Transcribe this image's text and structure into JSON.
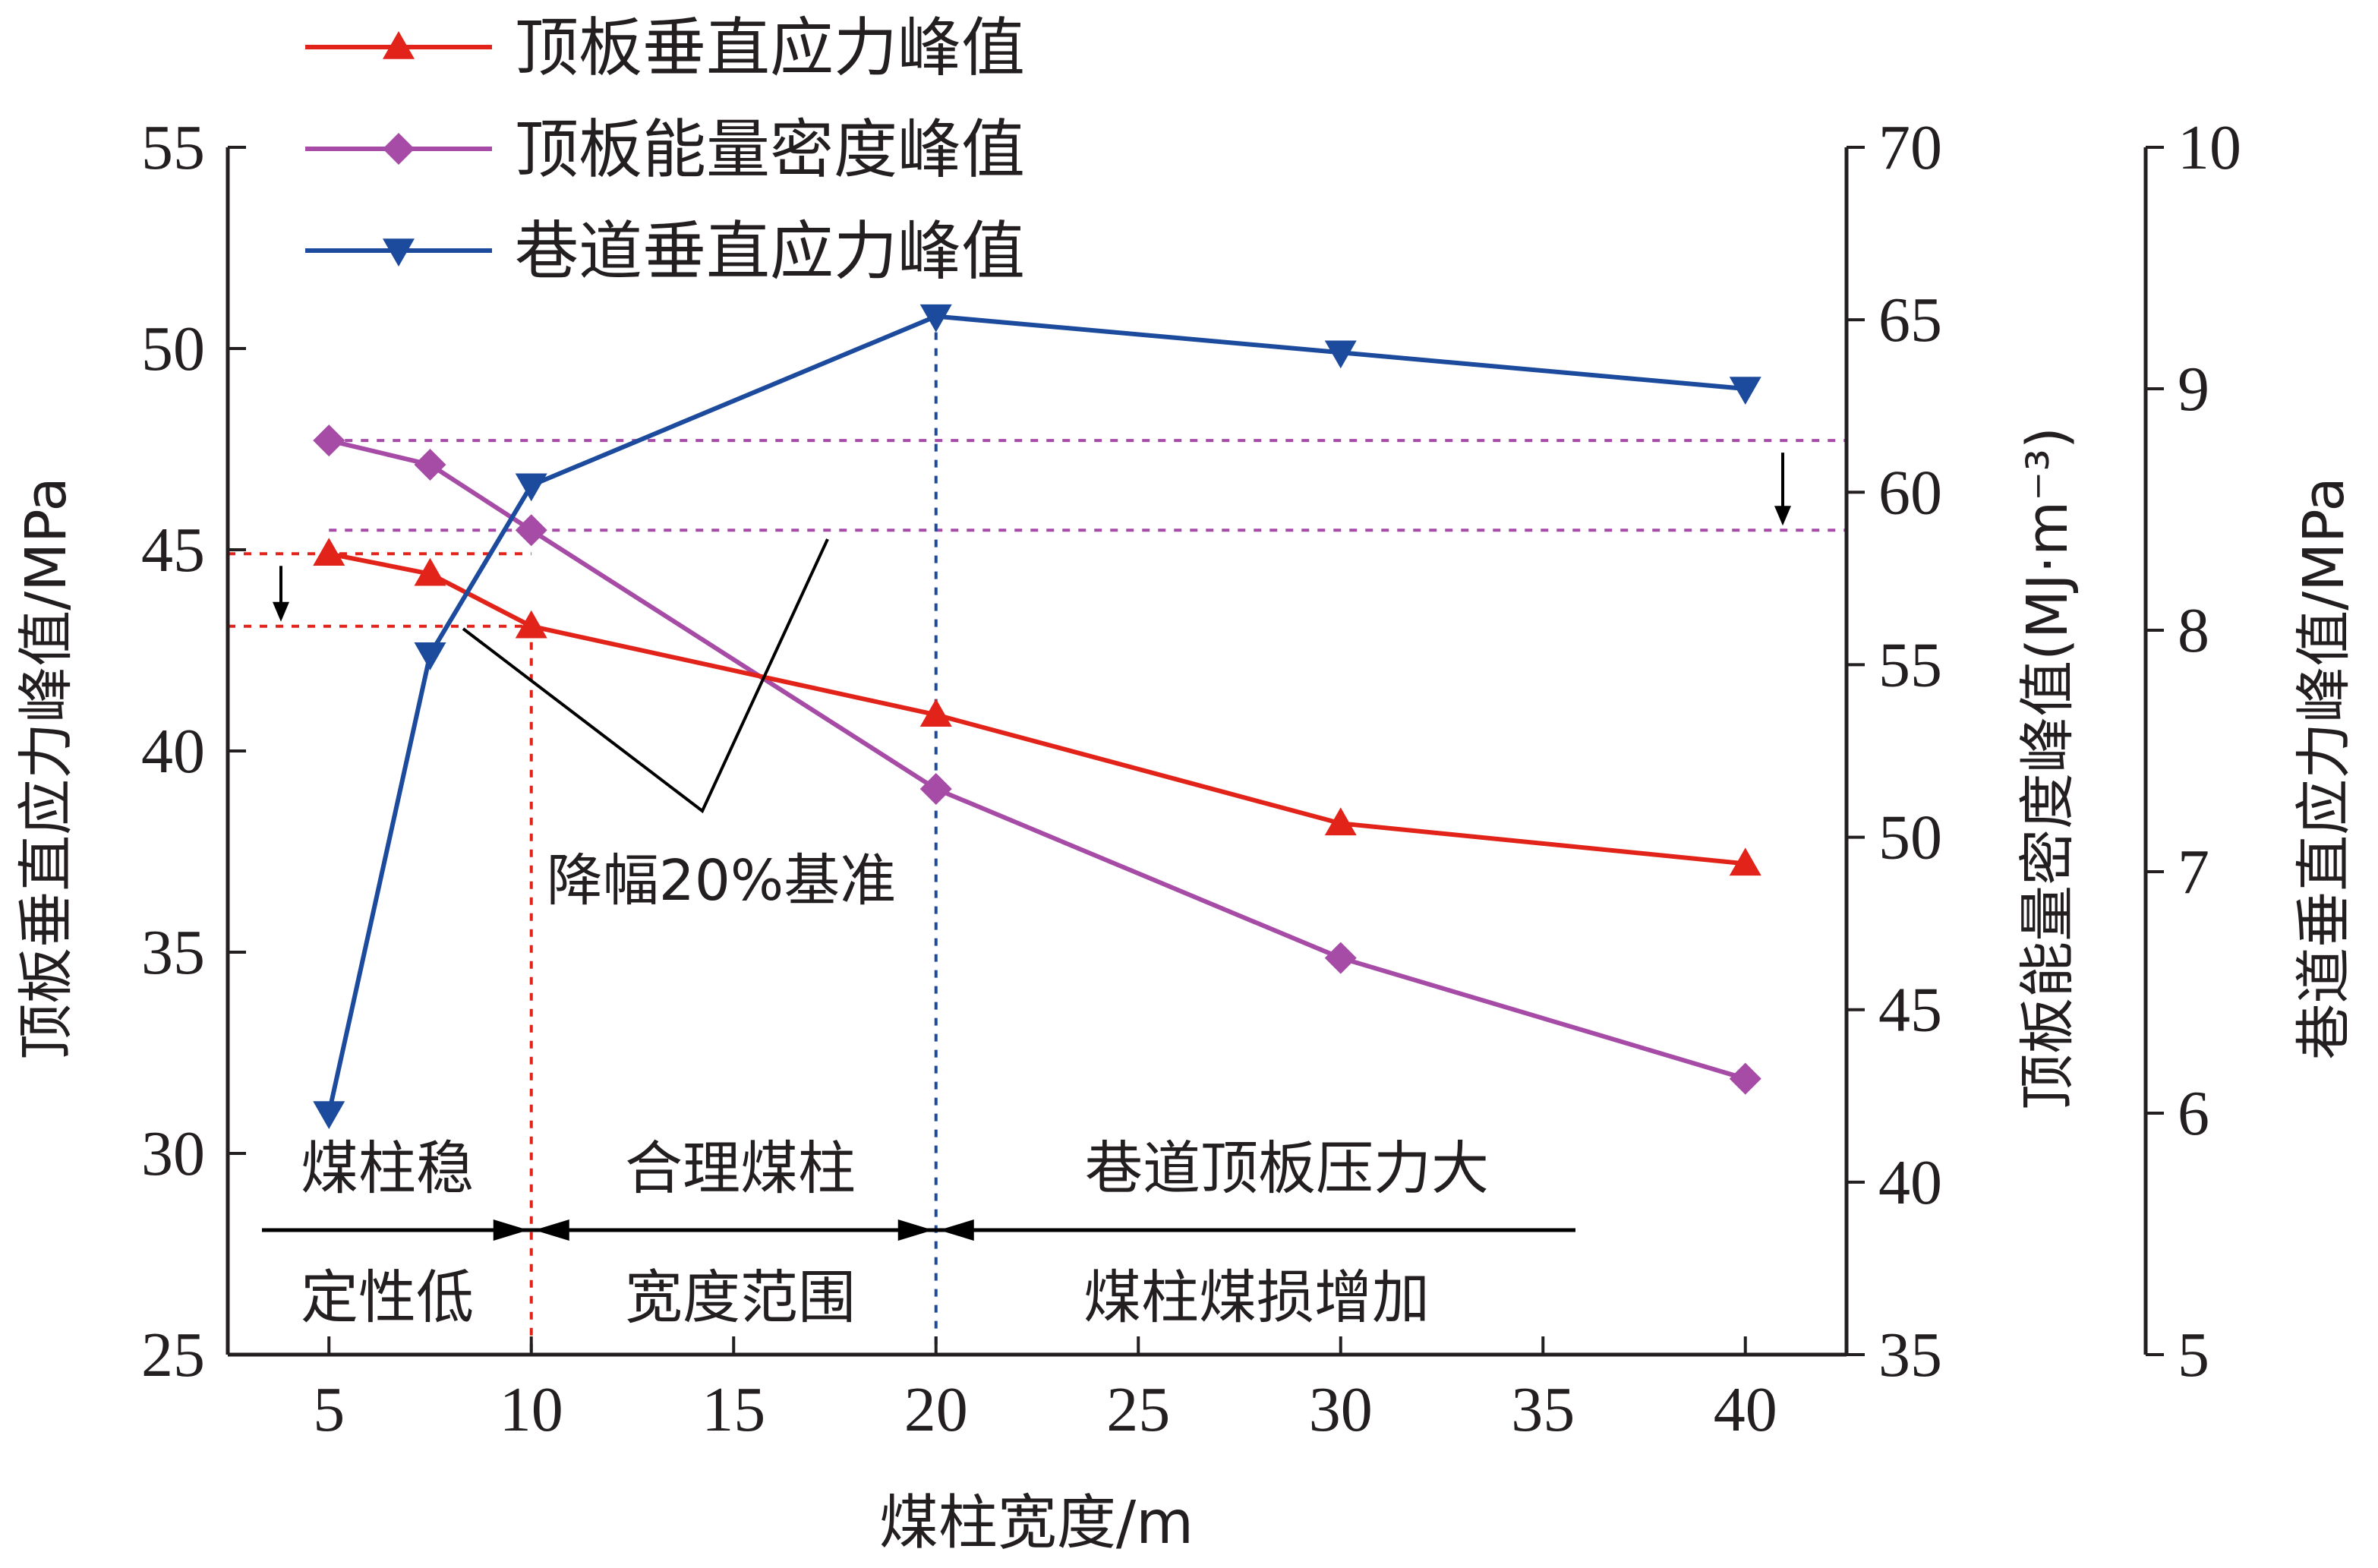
{
  "colors": {
    "roof_stress": "#e2231a",
    "energy_density": "#a64ca6",
    "roadway_stress": "#1c4a9c",
    "axis": "#231f20"
  },
  "chart_data": {
    "type": "line",
    "x": [
      5,
      7.5,
      10,
      20,
      30,
      40
    ],
    "xlabel": "煤柱宽度/m",
    "xticks": [
      "5",
      "10",
      "15",
      "20",
      "25",
      "30",
      "35",
      "40"
    ],
    "xlim": [
      2.5,
      42.5
    ],
    "y_axes": [
      {
        "id": "left",
        "label": "顶板垂直应力峰值/MPa",
        "ylim": [
          25,
          55
        ],
        "ticks": [
          "25",
          "30",
          "35",
          "40",
          "45",
          "50",
          "55"
        ]
      },
      {
        "id": "right1",
        "label": "顶板能量密度峰值(MJ·m⁻³)",
        "ylim": [
          35,
          70
        ],
        "ticks": [
          "35",
          "40",
          "45",
          "50",
          "55",
          "60",
          "65",
          "70"
        ]
      },
      {
        "id": "right2",
        "label": "巷道垂直应力峰值/MPa",
        "ylim": [
          5,
          10
        ],
        "ticks": [
          "5",
          "6",
          "7",
          "8",
          "9",
          "10"
        ]
      }
    ],
    "series": [
      {
        "name": "顶板垂直应力峰值",
        "axis": "left",
        "marker": "triangle-up",
        "color": "#e2231a",
        "values": [
          44.9,
          44.4,
          43.1,
          40.9,
          38.2,
          37.2
        ]
      },
      {
        "name": "顶板能量密度峰值",
        "axis": "right1",
        "marker": "diamond",
        "color": "#a64ca6",
        "values": [
          61.5,
          60.8,
          58.9,
          51.4,
          46.5,
          43.0
        ]
      },
      {
        "name": "巷道垂直应力峰值",
        "axis": "right2",
        "marker": "triangle-down",
        "color": "#1c4a9c",
        "values": [
          6.0,
          7.9,
          8.6,
          9.3,
          9.15,
          9.0
        ]
      }
    ],
    "legend_position": "top-left",
    "reference_lines": {
      "stress_hlines": [
        44.9,
        43.1
      ],
      "energy_hlines": [
        61.5,
        58.9
      ],
      "vlines": [
        10,
        20
      ]
    },
    "annotations": {
      "benchmark": "降幅20%基准",
      "zones": [
        {
          "top": "煤柱稳",
          "bottom": "定性低"
        },
        {
          "top": "合理煤柱",
          "bottom": "宽度范围"
        },
        {
          "top": "巷道顶板压力大",
          "bottom": "煤柱煤损增加"
        }
      ]
    }
  }
}
